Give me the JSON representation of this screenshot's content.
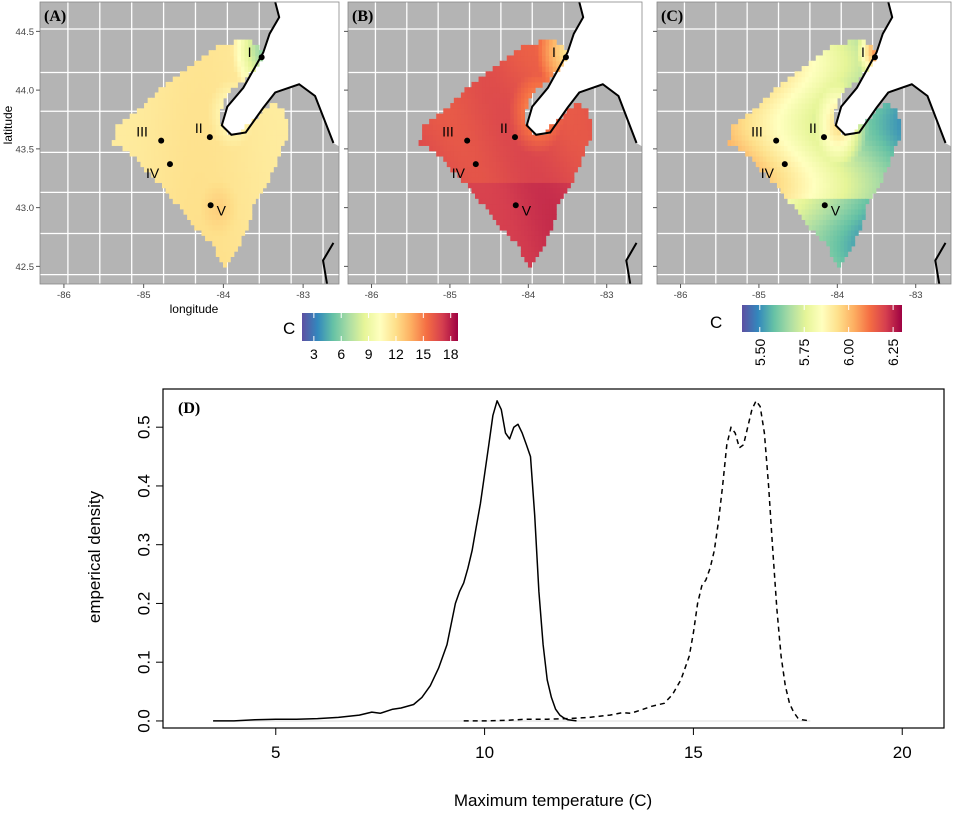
{
  "maps": {
    "panels": [
      {
        "label": "(A)",
        "map_type": "mean",
        "palette": "anomaly"
      },
      {
        "label": "(B)",
        "map_type": "mean",
        "palette": "hot"
      },
      {
        "label": "(C)",
        "map_type": "sd",
        "palette": "sd"
      }
    ],
    "x_ticks": [
      "-86",
      "-85",
      "-84",
      "-83"
    ],
    "x_tick_values": [
      -86,
      -85,
      -84,
      -83
    ],
    "y_ticks": [
      "44.5",
      "44.0",
      "43.5",
      "43.0",
      "42.5"
    ],
    "y_tick_values": [
      44.5,
      44.0,
      43.5,
      43.0,
      42.5
    ],
    "xlim": [
      -86.3,
      -82.55
    ],
    "ylim": [
      42.35,
      44.75
    ],
    "xlabel": "longitude",
    "ylabel": "latitude",
    "sites": [
      {
        "label": "I",
        "lon": -83.52,
        "lat": 44.28
      },
      {
        "label": "II",
        "lon": -84.17,
        "lat": 43.6
      },
      {
        "label": "III",
        "lon": -84.78,
        "lat": 43.57
      },
      {
        "label": "IV",
        "lon": -84.67,
        "lat": 43.37
      },
      {
        "label": "V",
        "lon": -84.16,
        "lat": 43.02
      }
    ],
    "colors": {
      "land": "#b4b4b4",
      "county_lines": "#ffffff",
      "coast": "#000000",
      "lake": "#ffffff"
    }
  },
  "legends": {
    "mean": {
      "title": "C",
      "ticks": [
        "3",
        "6",
        "9",
        "12",
        "15",
        "18"
      ],
      "tick_values": [
        3,
        6,
        9,
        12,
        15,
        18
      ],
      "range": [
        1.7,
        18.8
      ]
    },
    "sd": {
      "title": "C",
      "ticks": [
        "5.50",
        "5.75",
        "6.00",
        "6.25"
      ],
      "tick_values": [
        5.5,
        5.75,
        6.0,
        6.25
      ],
      "range": [
        5.4,
        6.3
      ]
    },
    "spectral_colors": [
      "#5e4fa2",
      "#3288bd",
      "#66c2a5",
      "#abdda4",
      "#e6f598",
      "#ffffbf",
      "#fee08b",
      "#fdae61",
      "#f46d43",
      "#d53e4f",
      "#9e0142"
    ]
  },
  "chart_data": {
    "type": "line",
    "title": "(D)",
    "xlabel": "Maximum temperature (C)",
    "ylabel": "emperical density",
    "xlim": [
      2.3,
      21.0
    ],
    "ylim": [
      -0.012,
      0.565
    ],
    "x_ticks": [
      5,
      10,
      15,
      20
    ],
    "y_ticks": [
      "0.0",
      "0.1",
      "0.2",
      "0.3",
      "0.4",
      "0.5"
    ],
    "y_tick_values": [
      0.0,
      0.1,
      0.2,
      0.3,
      0.4,
      0.5
    ],
    "series": [
      {
        "name": "solid",
        "style": "solid",
        "x": [
          3.5,
          4.0,
          4.5,
          5.0,
          5.5,
          6.0,
          6.5,
          7.0,
          7.3,
          7.5,
          7.8,
          8.0,
          8.3,
          8.5,
          8.7,
          8.9,
          9.1,
          9.2,
          9.3,
          9.4,
          9.5,
          9.6,
          9.7,
          9.8,
          9.9,
          10.0,
          10.1,
          10.2,
          10.3,
          10.4,
          10.5,
          10.6,
          10.7,
          10.8,
          10.9,
          11.0,
          11.1,
          11.2,
          11.3,
          11.4,
          11.5,
          11.6,
          11.7,
          11.8,
          11.9,
          12.0,
          12.2
        ],
        "y": [
          0.0,
          0.0,
          0.002,
          0.003,
          0.003,
          0.004,
          0.006,
          0.01,
          0.015,
          0.013,
          0.02,
          0.022,
          0.028,
          0.04,
          0.06,
          0.09,
          0.13,
          0.165,
          0.2,
          0.22,
          0.235,
          0.26,
          0.29,
          0.33,
          0.37,
          0.42,
          0.47,
          0.52,
          0.545,
          0.53,
          0.49,
          0.48,
          0.5,
          0.505,
          0.49,
          0.47,
          0.45,
          0.35,
          0.22,
          0.13,
          0.07,
          0.04,
          0.02,
          0.01,
          0.005,
          0.002,
          0.0
        ]
      },
      {
        "name": "dashed",
        "style": "dashed",
        "x": [
          9.5,
          10.0,
          10.5,
          11.0,
          11.5,
          12.0,
          12.5,
          13.0,
          13.3,
          13.5,
          13.8,
          14.0,
          14.3,
          14.5,
          14.7,
          14.9,
          15.0,
          15.1,
          15.2,
          15.3,
          15.4,
          15.5,
          15.6,
          15.7,
          15.8,
          15.9,
          16.0,
          16.1,
          16.2,
          16.3,
          16.4,
          16.5,
          16.6,
          16.7,
          16.8,
          16.9,
          17.0,
          17.1,
          17.2,
          17.3,
          17.4,
          17.5,
          17.6,
          17.8
        ],
        "y": [
          0.0,
          0.0,
          0.001,
          0.003,
          0.003,
          0.004,
          0.006,
          0.01,
          0.014,
          0.013,
          0.02,
          0.025,
          0.03,
          0.045,
          0.07,
          0.11,
          0.15,
          0.2,
          0.23,
          0.24,
          0.26,
          0.29,
          0.34,
          0.4,
          0.47,
          0.5,
          0.49,
          0.465,
          0.47,
          0.5,
          0.53,
          0.545,
          0.535,
          0.49,
          0.4,
          0.29,
          0.19,
          0.11,
          0.06,
          0.03,
          0.015,
          0.005,
          0.002,
          0.0
        ]
      }
    ]
  }
}
